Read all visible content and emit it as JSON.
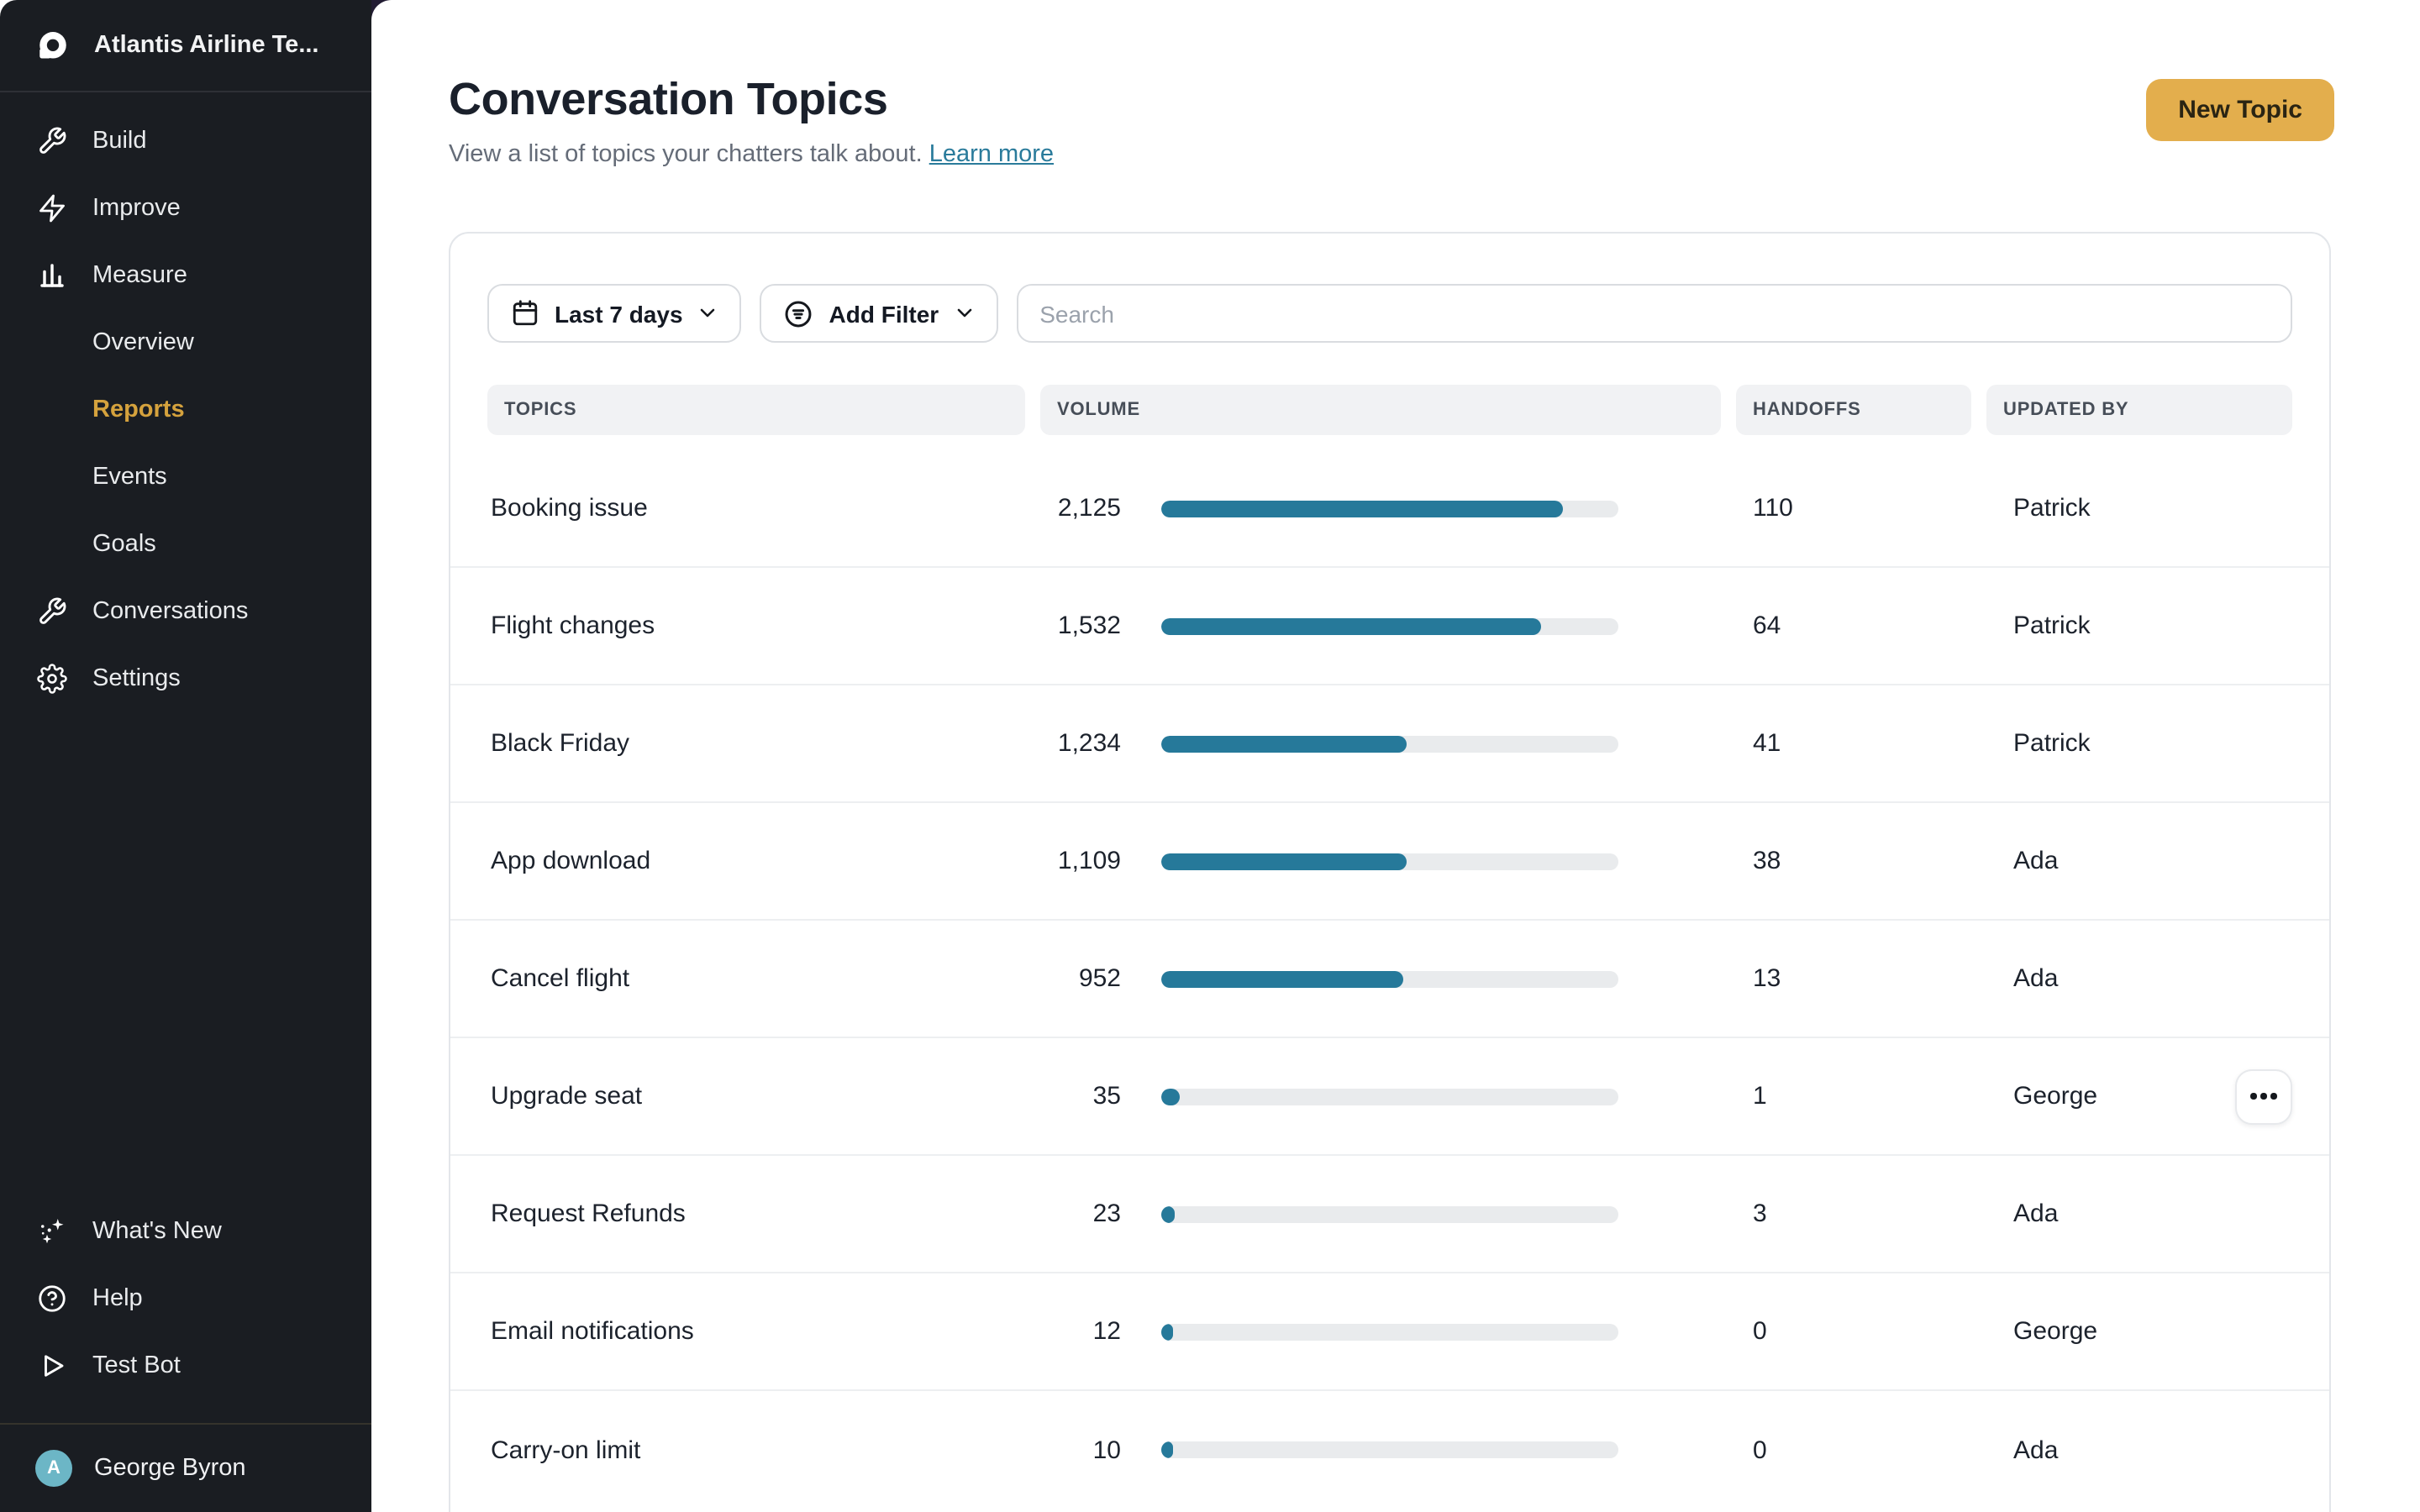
{
  "sidebar": {
    "workspace": "Atlantis Airline Te...",
    "nav": {
      "build": "Build",
      "improve": "Improve",
      "measure": "Measure",
      "overview": "Overview",
      "reports": "Reports",
      "events": "Events",
      "goals": "Goals",
      "conversations": "Conversations",
      "settings": "Settings"
    },
    "footer_nav": {
      "whats_new": "What's New",
      "help": "Help",
      "test_bot": "Test Bot"
    },
    "user": {
      "name": "George Byron",
      "avatar_initial": "A",
      "avatar_color": "#6cb6c6"
    }
  },
  "header": {
    "title": "Conversation Topics",
    "subtitle": "View a list of topics your chatters talk about.",
    "learn_more": "Learn more",
    "new_topic_label": "New Topic"
  },
  "filters": {
    "date_range": "Last 7 days",
    "add_filter": "Add Filter",
    "search_placeholder": "Search"
  },
  "table": {
    "columns": [
      "TOPICS",
      "VOLUME",
      "HANDOFFS",
      "UPDATED BY"
    ],
    "rows": [
      {
        "topic": "Booking issue",
        "volume": "2,125",
        "bar_pct": 88,
        "handoffs": "110",
        "updated_by": "Patrick",
        "has_menu": false
      },
      {
        "topic": "Flight changes",
        "volume": "1,532",
        "bar_pct": 83,
        "handoffs": "64",
        "updated_by": "Patrick",
        "has_menu": false
      },
      {
        "topic": "Black Friday",
        "volume": "1,234",
        "bar_pct": 53.5,
        "handoffs": "41",
        "updated_by": "Patrick",
        "has_menu": false
      },
      {
        "topic": "App download",
        "volume": "1,109",
        "bar_pct": 53.5,
        "handoffs": "38",
        "updated_by": "Ada",
        "has_menu": false
      },
      {
        "topic": "Cancel flight",
        "volume": "952",
        "bar_pct": 53,
        "handoffs": "13",
        "updated_by": "Ada",
        "has_menu": false
      },
      {
        "topic": "Upgrade seat",
        "volume": "35",
        "bar_pct": 4,
        "handoffs": "1",
        "updated_by": "George",
        "has_menu": true
      },
      {
        "topic": "Request Refunds",
        "volume": "23",
        "bar_pct": 3,
        "handoffs": "3",
        "updated_by": "Ada",
        "has_menu": false
      },
      {
        "topic": "Email notifications",
        "volume": "12",
        "bar_pct": 2.5,
        "handoffs": "0",
        "updated_by": "George",
        "has_menu": false
      },
      {
        "topic": "Carry-on limit",
        "volume": "10",
        "bar_pct": 2.5,
        "handoffs": "0",
        "updated_by": "Ada",
        "has_menu": false
      }
    ]
  },
  "colors": {
    "sidebar_bg": "#1a1d22",
    "backdrop": "#221c33",
    "accent_gold": "#e3ae4d",
    "active_nav_gold": "#d5a23d",
    "bar_teal": "#26799a",
    "link_teal": "#2a7b9b"
  }
}
